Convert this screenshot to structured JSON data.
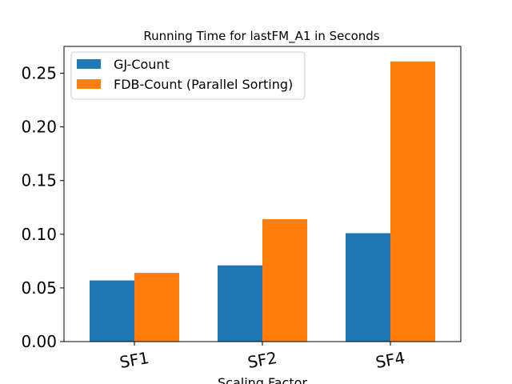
{
  "chart_data": {
    "type": "bar",
    "title": "Running Time for lastFM_A1 in Seconds",
    "xlabel": "Scaling Factor",
    "ylabel": "",
    "categories": [
      "SF1",
      "SF2",
      "SF4"
    ],
    "series": [
      {
        "name": "GJ-Count",
        "values": [
          0.057,
          0.071,
          0.101
        ],
        "color": "#1f77b4"
      },
      {
        "name": "FDB-Count (Parallel Sorting)",
        "values": [
          0.064,
          0.114,
          0.261
        ],
        "color": "#ff7f0e"
      }
    ],
    "ylim": [
      0,
      0.275
    ],
    "yticks": [
      "0.00",
      "0.05",
      "0.10",
      "0.15",
      "0.20",
      "0.25"
    ],
    "legend_position": "top-left",
    "grid": false
  }
}
